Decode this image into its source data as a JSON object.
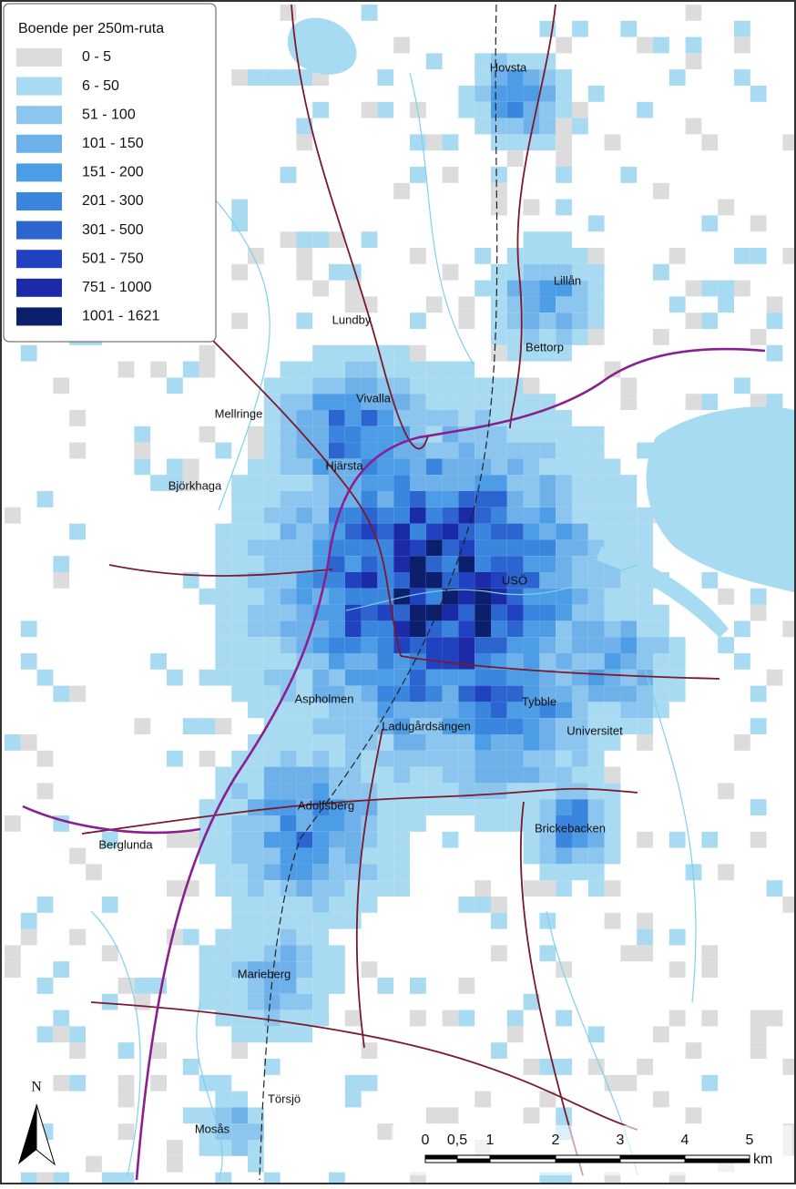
{
  "legend": {
    "title": "Boende per 250m-ruta",
    "items": [
      {
        "label": "0 - 5",
        "color": "#dcdcdc"
      },
      {
        "label": "6 - 50",
        "color": "#a8daf2"
      },
      {
        "label": "51 - 100",
        "color": "#8cc6ef"
      },
      {
        "label": "101 - 150",
        "color": "#6db0ea"
      },
      {
        "label": "151 - 200",
        "color": "#4c9de6"
      },
      {
        "label": "201 - 300",
        "color": "#3a86df"
      },
      {
        "label": "301 - 500",
        "color": "#2c64d0"
      },
      {
        "label": "501 - 750",
        "color": "#2142c0"
      },
      {
        "label": "751 - 1000",
        "color": "#1b2aa6"
      },
      {
        "label": "1001 - 1621",
        "color": "#0b1f6c"
      }
    ]
  },
  "places": [
    "Hovsta",
    "Lillån",
    "Lundby",
    "Bettorp",
    "Vivalla",
    "Mellringe",
    "Hjärsta",
    "Björkhaga",
    "USÖ",
    "Aspholmen",
    "Tybble",
    "Ladugårdsängen",
    "Universitet",
    "Adolfsberg",
    "Brickebacken",
    "Berglunda",
    "Marieberg",
    "Törsjö",
    "Mosås"
  ],
  "scale_bar": {
    "labels": [
      "0",
      "0,5",
      "1",
      "2",
      "3",
      "4",
      "5"
    ],
    "unit": "km"
  },
  "north_arrow": "N"
}
